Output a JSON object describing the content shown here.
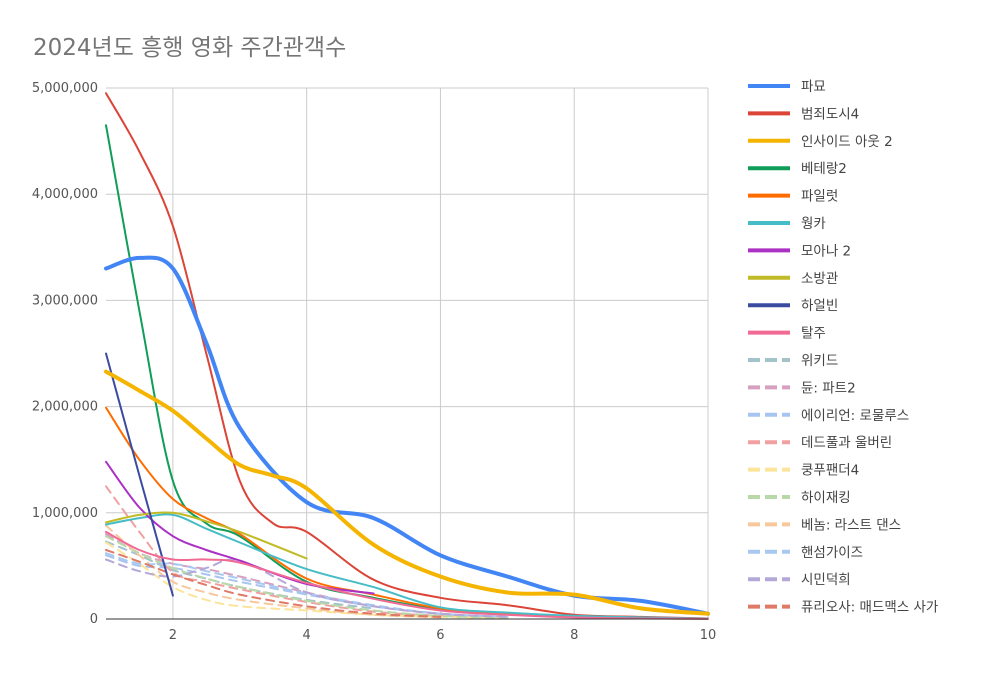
{
  "chart_data": {
    "type": "line",
    "title": "2024년도 흥행 영화 주간관객수",
    "xlim": [
      1,
      10
    ],
    "ylim": [
      0,
      5000000
    ],
    "x_ticks": [
      2,
      4,
      6,
      8,
      10
    ],
    "y_ticks": [
      0,
      1000000,
      2000000,
      3000000,
      4000000,
      5000000
    ],
    "x_tick_labels": [
      "2",
      "4",
      "6",
      "8",
      "10"
    ],
    "y_tick_labels": [
      "0",
      "1,000,000",
      "2,000,000",
      "3,000,000",
      "4,000,000",
      "5,000,000"
    ],
    "grid": true,
    "legend_position": "right",
    "series": [
      {
        "name": "파묘",
        "color": "#4285f4",
        "style": "solid",
        "width": 4,
        "x": [
          1,
          1.5,
          2,
          2.5,
          3,
          4,
          5,
          6,
          7,
          8,
          9,
          10
        ],
        "y": [
          3300000,
          3400000,
          3300000,
          2600000,
          1800000,
          1100000,
          950000,
          600000,
          400000,
          220000,
          170000,
          50000
        ]
      },
      {
        "name": "범죄도시4",
        "color": "#db4437",
        "style": "solid",
        "width": 2,
        "x": [
          1,
          1.5,
          2,
          2.5,
          3,
          3.5,
          4,
          5,
          6,
          7,
          8,
          9,
          10
        ],
        "y": [
          4950000,
          4400000,
          3700000,
          2500000,
          1300000,
          900000,
          820000,
          370000,
          200000,
          130000,
          40000,
          20000,
          5000
        ]
      },
      {
        "name": "인사이드 아웃 2",
        "color": "#f4b400",
        "style": "solid",
        "width": 4,
        "x": [
          1,
          1.5,
          2,
          2.5,
          3,
          3.5,
          4,
          5,
          6,
          7,
          8,
          9,
          10
        ],
        "y": [
          2330000,
          2150000,
          1960000,
          1700000,
          1450000,
          1350000,
          1230000,
          700000,
          400000,
          250000,
          230000,
          100000,
          50000
        ]
      },
      {
        "name": "베테랑2",
        "color": "#0f9d58",
        "style": "solid",
        "width": 2,
        "x": [
          1,
          1.5,
          2,
          2.5,
          3,
          4,
          5,
          6,
          7,
          8,
          9,
          10
        ],
        "y": [
          4650000,
          2900000,
          1300000,
          900000,
          780000,
          350000,
          200000,
          90000,
          50000,
          20000,
          8000,
          3000
        ]
      },
      {
        "name": "파일럿",
        "color": "#ff6d01",
        "style": "solid",
        "width": 2,
        "x": [
          1,
          1.5,
          2,
          2.5,
          3,
          4,
          5,
          6,
          7,
          8,
          9,
          10
        ],
        "y": [
          1990000,
          1500000,
          1130000,
          950000,
          800000,
          380000,
          230000,
          100000,
          50000,
          20000,
          8000,
          3000
        ]
      },
      {
        "name": "웡카",
        "color": "#46bdc6",
        "style": "solid",
        "width": 2,
        "x": [
          1,
          1.5,
          2,
          2.5,
          3,
          4,
          5,
          6,
          7,
          8,
          9,
          10
        ],
        "y": [
          890000,
          950000,
          980000,
          850000,
          720000,
          470000,
          300000,
          110000,
          60000,
          30000,
          15000,
          5000
        ]
      },
      {
        "name": "모아나 2",
        "color": "#ab30c4",
        "style": "solid",
        "width": 2,
        "x": [
          1,
          1.5,
          2,
          2.5,
          3,
          4,
          5
        ],
        "y": [
          1480000,
          1050000,
          780000,
          650000,
          550000,
          330000,
          240000
        ]
      },
      {
        "name": "소방관",
        "color": "#c0bb27",
        "style": "solid",
        "width": 2,
        "x": [
          1,
          1.5,
          2,
          2.5,
          3,
          4
        ],
        "y": [
          910000,
          980000,
          1000000,
          920000,
          820000,
          570000
        ]
      },
      {
        "name": "하얼빈",
        "color": "#3b4ba0",
        "style": "solid",
        "width": 2,
        "x": [
          1,
          1.5,
          2
        ],
        "y": [
          2500000,
          1350000,
          220000
        ]
      },
      {
        "name": "탈주",
        "color": "#f06a94",
        "style": "solid",
        "width": 2,
        "x": [
          1,
          1.5,
          2,
          2.5,
          3,
          4,
          5,
          6,
          7,
          8,
          9,
          10
        ],
        "y": [
          820000,
          650000,
          560000,
          560000,
          530000,
          340000,
          190000,
          80000,
          40000,
          15000,
          5000,
          2000
        ]
      },
      {
        "name": "위키드",
        "color": "#a3c2c9",
        "style": "dashed",
        "width": 2,
        "x": [
          1,
          1.5,
          2,
          2.5,
          3,
          4,
          5
        ],
        "y": [
          730000,
          600000,
          460000,
          380000,
          300000,
          180000,
          100000
        ]
      },
      {
        "name": "듄: 파트2",
        "color": "#d8a0c0",
        "style": "dashed",
        "width": 2,
        "x": [
          1,
          1.5,
          2,
          2.5,
          3,
          4,
          5,
          6,
          7
        ],
        "y": [
          800000,
          620000,
          520000,
          470000,
          400000,
          250000,
          120000,
          50000,
          20000
        ]
      },
      {
        "name": "에이리언: 로물루스",
        "color": "#a8c4f0",
        "style": "dashed",
        "width": 2,
        "x": [
          1,
          1.5,
          2,
          2.5,
          3,
          4,
          5,
          6,
          7
        ],
        "y": [
          600000,
          500000,
          480000,
          420000,
          350000,
          230000,
          120000,
          50000,
          20000
        ]
      },
      {
        "name": "데드풀과 울버린",
        "color": "#f0a0a0",
        "style": "dashed",
        "width": 2,
        "x": [
          1,
          1.5,
          2,
          2.5,
          3,
          4,
          5,
          6,
          7
        ],
        "y": [
          1250000,
          820000,
          440000,
          350000,
          280000,
          160000,
          70000,
          30000,
          10000
        ]
      },
      {
        "name": "쿵푸팬더4",
        "color": "#fce49a",
        "style": "dashed",
        "width": 2,
        "x": [
          1,
          1.5,
          2,
          2.5,
          3,
          4,
          5,
          6,
          7
        ],
        "y": [
          720000,
          520000,
          300000,
          180000,
          120000,
          80000,
          40000,
          20000,
          8000
        ]
      },
      {
        "name": "하이재킹",
        "color": "#b8d8a8",
        "style": "dashed",
        "width": 2,
        "x": [
          1,
          1.5,
          2,
          2.5,
          3,
          4,
          5,
          6,
          7
        ],
        "y": [
          780000,
          620000,
          480000,
          380000,
          300000,
          170000,
          80000,
          30000,
          10000
        ]
      },
      {
        "name": "베놈: 라스트 댄스",
        "color": "#f6c89c",
        "style": "dashed",
        "width": 2,
        "x": [
          1,
          1.5,
          2,
          2.5,
          3,
          4,
          5,
          6
        ],
        "y": [
          880000,
          600000,
          350000,
          250000,
          180000,
          100000,
          40000,
          15000
        ]
      },
      {
        "name": "핸섬가이즈",
        "color": "#a8c8f0",
        "style": "dashed",
        "width": 2,
        "x": [
          1,
          1.5,
          2,
          2.5,
          3,
          4,
          5,
          6,
          7
        ],
        "y": [
          620000,
          520000,
          520000,
          450000,
          380000,
          240000,
          130000,
          50000,
          20000
        ]
      },
      {
        "name": "시민덕희",
        "color": "#b4a8d8",
        "style": "dashed",
        "width": 2,
        "x": [
          1,
          1.5,
          2,
          2.5,
          3,
          4,
          5,
          6,
          7
        ],
        "y": [
          560000,
          450000,
          400000,
          480000,
          550000,
          250000,
          120000,
          50000,
          20000
        ]
      },
      {
        "name": "퓨리오사: 매드맥스 사가",
        "color": "#de7a66",
        "style": "dashed",
        "width": 2,
        "x": [
          1,
          1.5,
          2,
          2.5,
          3,
          4,
          5,
          6
        ],
        "y": [
          650000,
          540000,
          420000,
          320000,
          230000,
          120000,
          50000,
          20000
        ]
      }
    ]
  }
}
